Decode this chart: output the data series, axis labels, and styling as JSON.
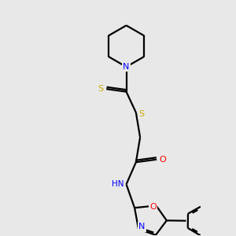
{
  "bg_color": "#e8e8e8",
  "atom_colors": {
    "N": "#0000ff",
    "O": "#ff0000",
    "S": "#ccaa00",
    "H": "#008080",
    "C": "#000000"
  },
  "bond_lw": 1.6,
  "font_size": 8
}
